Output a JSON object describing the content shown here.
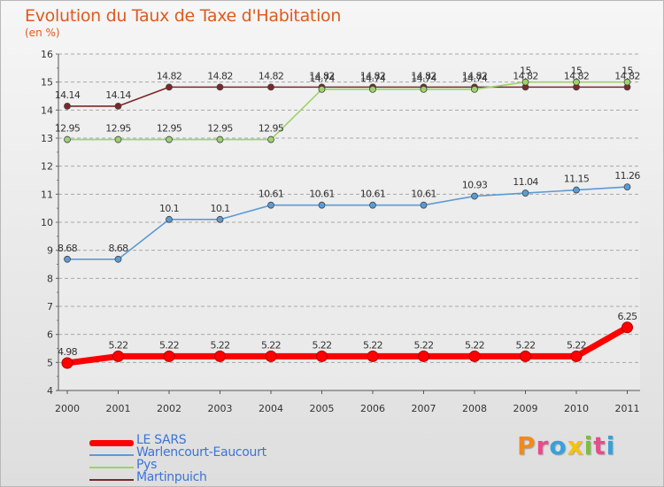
{
  "title": "Evolution du Taux de Taxe d'Habitation",
  "unit_label": "(en %)",
  "logo_text": "Proxiti",
  "colors": {
    "title": "#de5a1e",
    "legend_text": "#3a74d8",
    "grid": "#a8a8a8",
    "axis": "#555555"
  },
  "chart_data": {
    "type": "line",
    "x": [
      "2000",
      "2001",
      "2002",
      "2003",
      "2004",
      "2005",
      "2006",
      "2007",
      "2008",
      "2009",
      "2010",
      "2011"
    ],
    "ylim": [
      4,
      16
    ],
    "yticks": [
      "4",
      "5",
      "6",
      "7",
      "8",
      "9",
      "10",
      "11",
      "12",
      "13",
      "14",
      "15",
      "16"
    ],
    "grid": "horizontal dashed",
    "legend_position": "bottom-left",
    "series": [
      {
        "name": "LE SARS",
        "color": "#ff0000",
        "values": [
          4.98,
          5.22,
          5.22,
          5.22,
          5.22,
          5.22,
          5.22,
          5.22,
          5.22,
          5.22,
          5.22,
          6.25
        ],
        "labels": [
          "4.98",
          "5.22",
          "5.22",
          "5.22",
          "5.22",
          "5.22",
          "5.22",
          "5.22",
          "5.22",
          "5.22",
          "5.22",
          "6.25"
        ]
      },
      {
        "name": "Warlencourt-Eaucourt",
        "color": "#5b9bd5",
        "values": [
          8.68,
          8.68,
          10.1,
          10.1,
          10.61,
          10.61,
          10.61,
          10.61,
          10.93,
          11.04,
          11.15,
          11.26
        ],
        "labels": [
          "8.68",
          "8.68",
          "10.1",
          "10.1",
          "10.61",
          "10.61",
          "10.61",
          "10.61",
          "10.93",
          "11.04",
          "11.15",
          "11.26"
        ]
      },
      {
        "name": "Pys",
        "color": "#9ed26a",
        "values": [
          12.95,
          12.95,
          12.95,
          12.95,
          12.95,
          14.74,
          14.74,
          14.74,
          14.74,
          15,
          15,
          15
        ],
        "labels": [
          "12.95",
          "12.95",
          "12.95",
          "12.95",
          "12.95",
          "14.74",
          "14.74",
          "14.74",
          "14.74",
          "15",
          "15",
          "15"
        ]
      },
      {
        "name": "Martinpuich",
        "color": "#7b2828",
        "values": [
          14.14,
          14.14,
          14.82,
          14.82,
          14.82,
          14.82,
          14.82,
          14.82,
          14.82,
          14.82,
          14.82,
          14.82
        ],
        "labels": [
          "14.14",
          "14.14",
          "14.82",
          "14.82",
          "14.82",
          "14.82",
          "14.82",
          "14.82",
          "14.82",
          "14.82",
          "14.82",
          "14.82"
        ]
      }
    ]
  }
}
